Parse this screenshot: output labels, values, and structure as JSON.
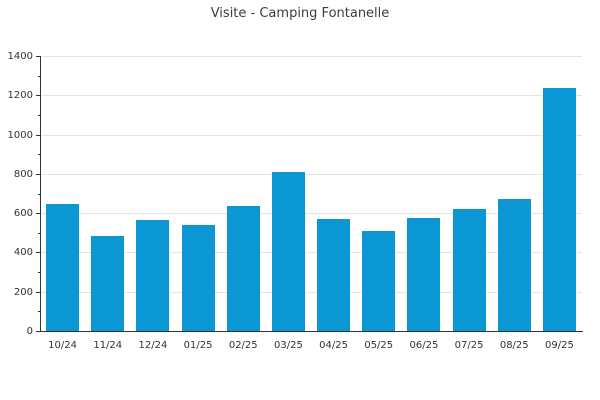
{
  "chart_data": {
    "type": "bar",
    "title": "Visite - Camping Fontanelle",
    "categories": [
      "10/24",
      "11/24",
      "12/24",
      "01/25",
      "02/25",
      "03/25",
      "04/25",
      "05/25",
      "06/25",
      "07/25",
      "08/25",
      "09/25"
    ],
    "values": [
      645,
      485,
      565,
      540,
      635,
      810,
      570,
      510,
      575,
      620,
      670,
      1235
    ],
    "xlabel": "",
    "ylabel": "",
    "ylim": [
      0,
      1400
    ],
    "yticks": [
      0,
      200,
      400,
      600,
      800,
      1000,
      1200,
      1400
    ],
    "yticks_minor": [
      100,
      300,
      500,
      700,
      900,
      1100,
      1300
    ],
    "grid": "horizontal",
    "legend_position": "none",
    "colors": {
      "bar": "#0a97d4",
      "grid": "#e4e4e8",
      "axis": "#333333",
      "tick_text": "#333333",
      "title_text": "#3d3d3d",
      "background": "#ffffff"
    }
  }
}
